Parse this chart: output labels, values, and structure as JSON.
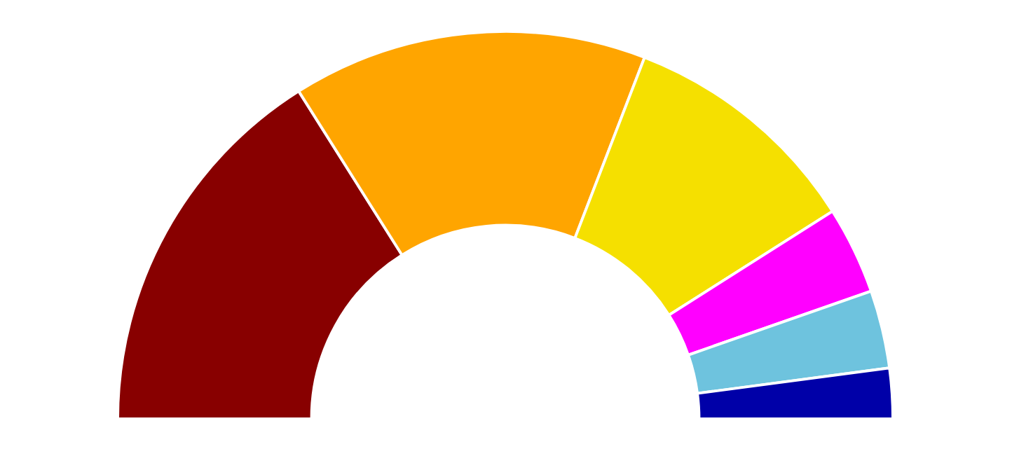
{
  "chart_data": {
    "type": "donut",
    "categories": [
      null,
      null,
      null,
      null,
      null,
      null
    ],
    "values": [
      32.1,
      29.6,
      20.3,
      7.3,
      6.5,
      4.2
    ],
    "colors": [
      "#880000",
      "#ffa500",
      "#f5e000",
      "#ff00ff",
      "#6ec3de",
      "#0000a8"
    ]
  }
}
